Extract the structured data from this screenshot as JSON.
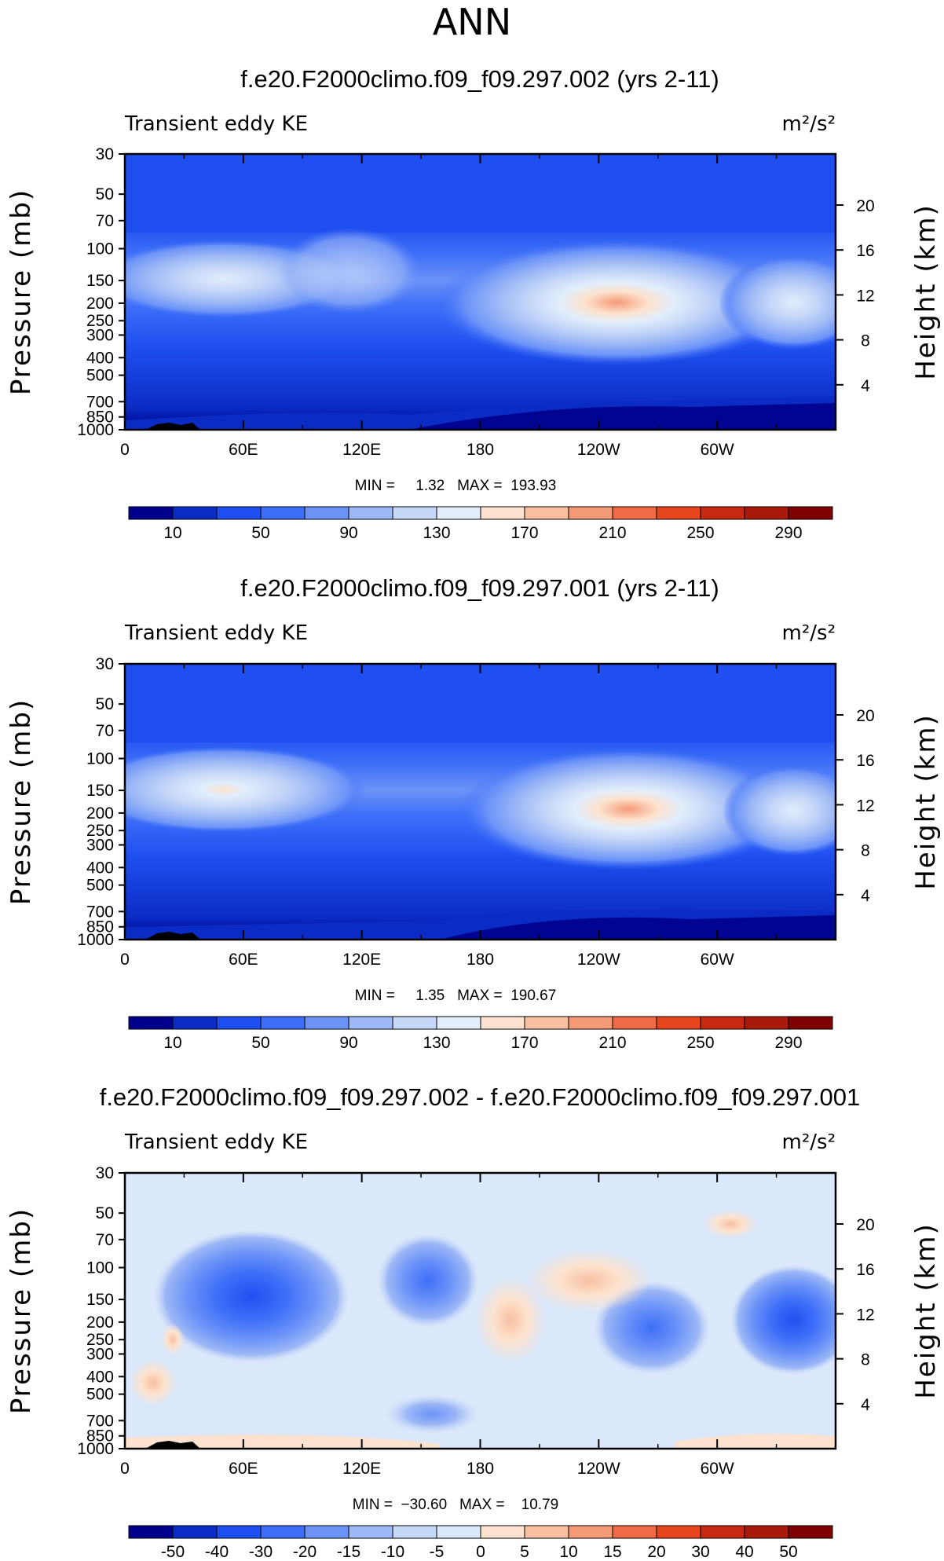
{
  "super_title": "ANN",
  "units": "m²/s²",
  "variable": "Transient eddy KE",
  "y_left_title": "Pressure (mb)",
  "y_right_title": "Height (km)",
  "x_ticks": [
    "0",
    "60E",
    "120E",
    "180",
    "120W",
    "60W"
  ],
  "x_tick_values": [
    0,
    60,
    120,
    180,
    240,
    300
  ],
  "p_ticks": [
    "30",
    "50",
    "70",
    "100",
    "150",
    "200",
    "250",
    "300",
    "400",
    "500",
    "700",
    "850",
    "1000"
  ],
  "p_tick_values": [
    30,
    50,
    70,
    100,
    150,
    200,
    250,
    300,
    400,
    500,
    700,
    850,
    1000
  ],
  "h_ticks": [
    "20",
    "16",
    "12",
    "8",
    "4"
  ],
  "h_tick_values": [
    20,
    16,
    12,
    8,
    4
  ],
  "abs_levels": [
    "10",
    "50",
    "90",
    "130",
    "170",
    "210",
    "250",
    "290"
  ],
  "diff_levels": [
    "-50",
    "-40",
    "-30",
    "-20",
    "-15",
    "-10",
    "-5",
    "0",
    "5",
    "10",
    "15",
    "20",
    "30",
    "40",
    "50"
  ],
  "abs_colors": [
    "#00008b",
    "#0a2cc4",
    "#1f4ff0",
    "#3e6ef8",
    "#6b93f8",
    "#9db8f6",
    "#c6d8f8",
    "#e2eefc",
    "#fde3cf",
    "#f8c0a1",
    "#f59a77",
    "#f06a45",
    "#e8461f",
    "#c62810",
    "#a81a0a",
    "#7f0000"
  ],
  "diff_colors": [
    "#00008b",
    "#0a2cc4",
    "#1f4ff0",
    "#3e6ef8",
    "#6b93f8",
    "#9db8f6",
    "#c6d8f8",
    "#dbe8fb",
    "#fde3cf",
    "#f8c0a1",
    "#f59a77",
    "#f06a45",
    "#e8461f",
    "#c62810",
    "#a81a0a",
    "#7f0000"
  ],
  "chart_data": [
    {
      "type": "heatmap",
      "title": "f.e20.F2000climo.f09_f09.297.002 (yrs 2-11)",
      "variable": "Transient eddy KE",
      "units": "m²/s²",
      "min_label": "MIN =     1.32   MAX =  193.93",
      "min": 1.32,
      "max": 193.93,
      "xlim": [
        0,
        360
      ],
      "ylim": [
        1000,
        30
      ],
      "features": [
        {
          "region": "jet over 120W",
          "lon": 250,
          "pressure": 200,
          "value": 190
        },
        {
          "region": "jet over 60E",
          "lon": 55,
          "pressure": 150,
          "value": 140
        },
        {
          "region": "jet over 30W",
          "lon": 330,
          "pressure": 200,
          "value": 140
        }
      ]
    },
    {
      "type": "heatmap",
      "title": "f.e20.F2000climo.f09_f09.297.001 (yrs 2-11)",
      "variable": "Transient eddy KE",
      "units": "m²/s²",
      "min_label": "MIN =     1.35   MAX =  190.67",
      "min": 1.35,
      "max": 190.67,
      "xlim": [
        0,
        360
      ],
      "ylim": [
        1000,
        30
      ],
      "features": [
        {
          "region": "jet over 120W",
          "lon": 250,
          "pressure": 200,
          "value": 185
        },
        {
          "region": "jet over 60E",
          "lon": 55,
          "pressure": 150,
          "value": 170
        },
        {
          "region": "jet over 30W",
          "lon": 330,
          "pressure": 200,
          "value": 150
        }
      ]
    },
    {
      "type": "heatmap",
      "title": "f.e20.F2000climo.f09_f09.297.002 - f.e20.F2000climo.f09_f09.297.001",
      "variable": "Transient eddy KE",
      "units": "m²/s²",
      "min_label": "MIN =  −30.60   MAX =    10.79",
      "min": -30.6,
      "max": 10.79,
      "xlim": [
        0,
        360
      ],
      "ylim": [
        1000,
        30
      ],
      "features": [
        {
          "region": "deficit over 60E",
          "lon": 65,
          "pressure": 150,
          "value": -30
        },
        {
          "region": "deficit over 150E",
          "lon": 150,
          "pressure": 120,
          "value": -15
        },
        {
          "region": "surplus near 150W",
          "lon": 210,
          "pressure": 150,
          "value": 8
        },
        {
          "region": "deficit near 90W",
          "lon": 270,
          "pressure": 250,
          "value": -20
        },
        {
          "region": "deficit near 30W",
          "lon": 340,
          "pressure": 200,
          "value": -20
        }
      ]
    }
  ]
}
